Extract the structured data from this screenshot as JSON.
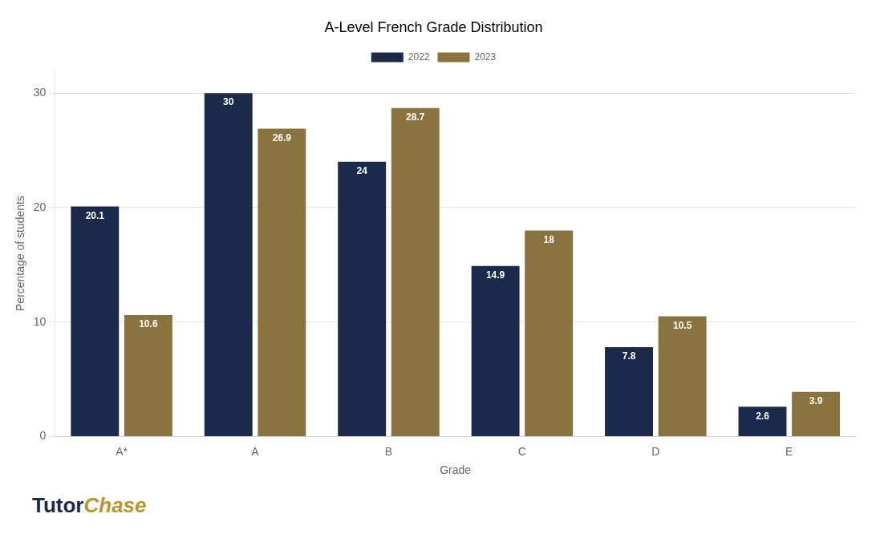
{
  "chart_data": {
    "type": "bar",
    "title": "A-Level French Grade Distribution",
    "xlabel": "Grade",
    "ylabel": "Percentage of students",
    "categories": [
      "A*",
      "A",
      "B",
      "C",
      "D",
      "E"
    ],
    "series": [
      {
        "name": "2022",
        "color": "#1B2A4A",
        "values": [
          20.1,
          30.0,
          24.0,
          14.9,
          7.8,
          2.6
        ]
      },
      {
        "name": "2023",
        "color": "#8B7340",
        "values": [
          10.6,
          26.9,
          28.7,
          18.0,
          10.5,
          3.9
        ]
      }
    ],
    "ylim": [
      0,
      32
    ],
    "yticks": [
      0,
      10,
      20,
      30
    ],
    "grid": true,
    "legend": "top",
    "data_labels": true,
    "annotations": [
      {
        "text": "Tutor",
        "color": "#1B2A4A"
      },
      {
        "text": "Chase",
        "color": "#B8962E"
      }
    ]
  }
}
